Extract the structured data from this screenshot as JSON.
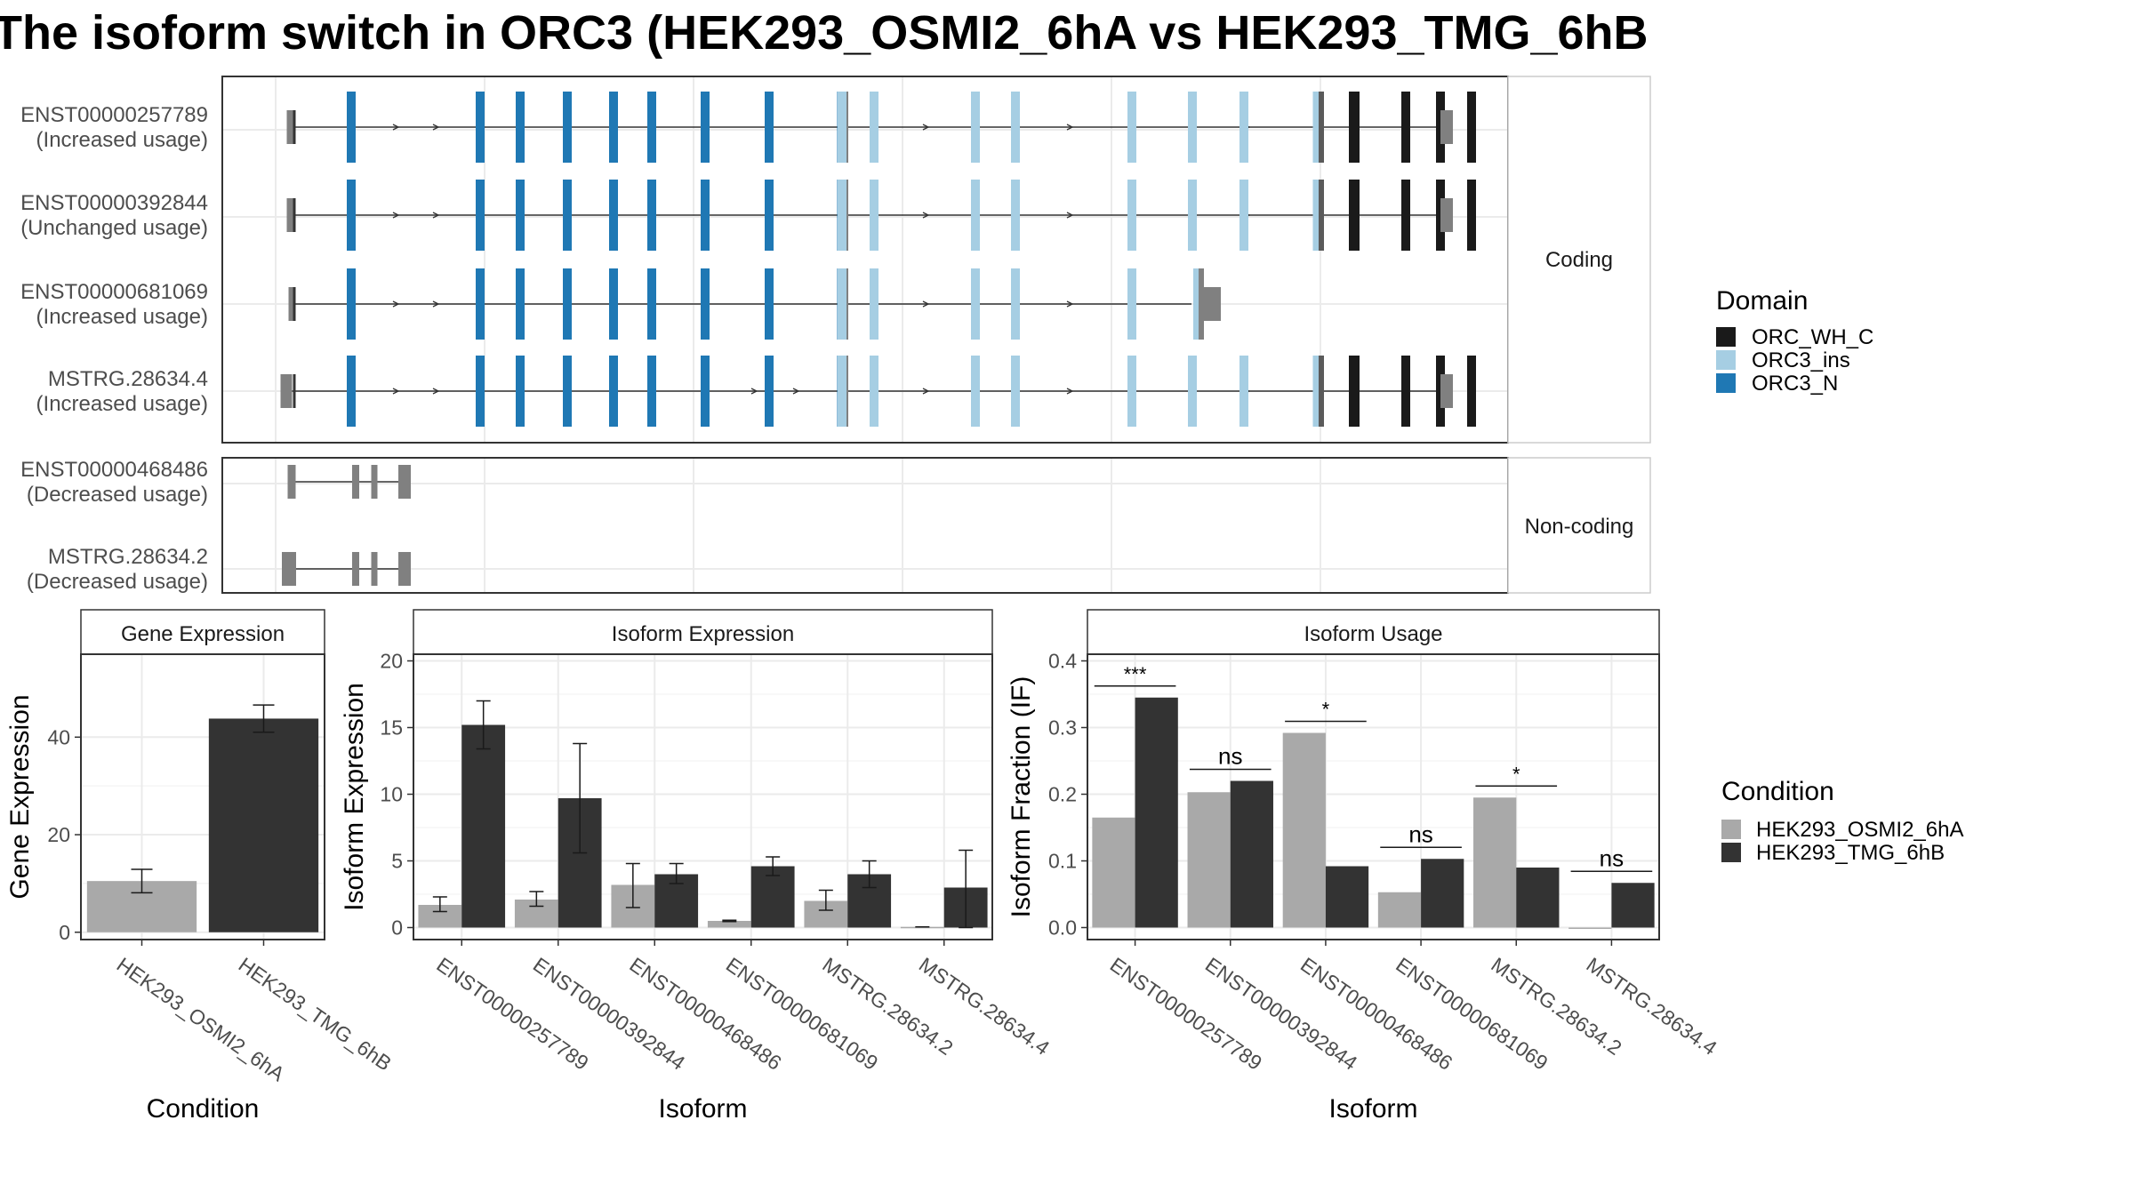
{
  "title": "The isoform switch in ORC3 (HEK293_OSMI2_6hA vs HEK293_TMG_6hB",
  "colors": {
    "ORC_WH_C": "#1a1a1a",
    "ORC3_ins": "#a6cee3",
    "ORC3_N": "#1f78b4",
    "utr": "#808080",
    "cond_a": "#a9a9a9",
    "cond_b": "#333333"
  },
  "structure": {
    "coding_label": "Coding",
    "noncoding_label": "Non-coding",
    "transcripts": [
      {
        "id": "ENST00000257789",
        "usage": "(Increased usage)",
        "group": "coding"
      },
      {
        "id": "ENST00000392844",
        "usage": "(Unchanged usage)",
        "group": "coding"
      },
      {
        "id": "ENST00000681069",
        "usage": "(Increased usage)",
        "group": "coding"
      },
      {
        "id": "MSTRG.28634.4",
        "usage": "(Increased usage)",
        "group": "coding"
      },
      {
        "id": "ENST00000468486",
        "usage": "(Decreased usage)",
        "group": "noncoding"
      },
      {
        "id": "MSTRG.28634.2",
        "usage": "(Decreased usage)",
        "group": "noncoding"
      }
    ]
  },
  "legend_domain": {
    "title": "Domain",
    "items": [
      {
        "label": "ORC_WH_C",
        "color": "#1a1a1a"
      },
      {
        "label": "ORC3_ins",
        "color": "#a6cee3"
      },
      {
        "label": "ORC3_N",
        "color": "#1f78b4"
      }
    ]
  },
  "legend_condition": {
    "title": "Condition",
    "items": [
      {
        "label": "HEK293_OSMI2_6hA",
        "color": "#a9a9a9"
      },
      {
        "label": "HEK293_TMG_6hB",
        "color": "#333333"
      }
    ]
  },
  "chart_data": [
    {
      "type": "bar",
      "title": "Gene Expression",
      "xlabel": "Condition",
      "ylabel": "Gene Expression",
      "categories": [
        "HEK293_OSMI2_6hA",
        "HEK293_TMG_6hB"
      ],
      "values": [
        10.5,
        43.8
      ],
      "err_low": [
        8.1,
        41.0
      ],
      "err_high": [
        12.9,
        46.6
      ],
      "ylim": [
        -1.5,
        57
      ],
      "yticks": [
        0,
        20,
        40
      ]
    },
    {
      "type": "bar",
      "title": "Isoform Expression",
      "xlabel": "Isoform",
      "ylabel": "Isoform Expression",
      "categories": [
        "ENST00000257789",
        "ENST00000392844",
        "ENST00000468486",
        "ENST00000681069",
        "MSTRG.28634.2",
        "MSTRG.28634.4"
      ],
      "series": [
        {
          "name": "HEK293_OSMI2_6hA",
          "values": [
            1.7,
            2.1,
            3.2,
            0.5,
            2.0,
            0.05
          ],
          "err_low": [
            1.2,
            1.6,
            1.5,
            0.45,
            1.3,
            0.05
          ],
          "err_high": [
            2.3,
            2.7,
            4.8,
            0.55,
            2.8,
            0.05
          ]
        },
        {
          "name": "HEK293_TMG_6hB",
          "values": [
            15.2,
            9.7,
            4.0,
            4.6,
            4.0,
            3.0
          ],
          "err_low": [
            13.4,
            5.6,
            3.3,
            3.9,
            3.0,
            0.0
          ],
          "err_high": [
            17.0,
            13.8,
            4.8,
            5.3,
            5.0,
            5.8
          ]
        }
      ],
      "ylim": [
        -0.9,
        20.5
      ],
      "yticks": [
        0,
        5,
        10,
        15,
        20
      ]
    },
    {
      "type": "bar",
      "title": "Isoform Usage",
      "xlabel": "Isoform",
      "ylabel": "Isoform Fraction (IF)",
      "categories": [
        "ENST00000257789",
        "ENST00000392844",
        "ENST00000468486",
        "ENST00000681069",
        "MSTRG.28634.2",
        "MSTRG.28634.4"
      ],
      "series": [
        {
          "name": "HEK293_OSMI2_6hA",
          "values": [
            0.165,
            0.203,
            0.292,
            0.053,
            0.195,
            0.0
          ]
        },
        {
          "name": "HEK293_TMG_6hB",
          "values": [
            0.345,
            0.22,
            0.092,
            0.103,
            0.09,
            0.067
          ]
        }
      ],
      "significance": [
        "***",
        "ns",
        "*",
        "ns",
        "*",
        "ns"
      ],
      "ylim": [
        -0.018,
        0.41
      ],
      "yticks": [
        0.0,
        0.1,
        0.2,
        0.3,
        0.4
      ],
      "ytick_labels": [
        "0.0",
        "0.1",
        "0.2",
        "0.3",
        "0.4"
      ]
    }
  ]
}
